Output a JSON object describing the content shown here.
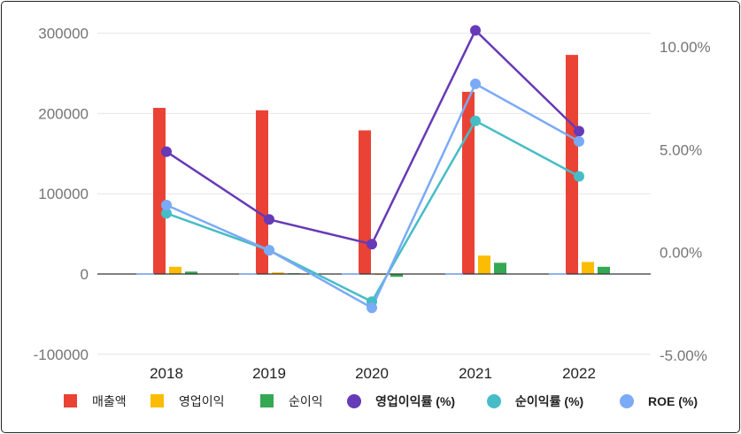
{
  "chart_data": {
    "type": "bar",
    "categories": [
      "2018",
      "2019",
      "2020",
      "2021",
      "2022"
    ],
    "series": [
      {
        "name": "매출액",
        "kind": "bar",
        "axis": "left",
        "color": "#EA4335",
        "values": [
          207000,
          204000,
          179000,
          227000,
          273000
        ]
      },
      {
        "name": "영업이익",
        "kind": "bar",
        "axis": "left",
        "color": "#FBBC04",
        "values": [
          9000,
          2000,
          -1000,
          23000,
          15000
        ]
      },
      {
        "name": "순이익",
        "kind": "bar",
        "axis": "left",
        "color": "#34A853",
        "values": [
          3000,
          1000,
          -3500,
          14000,
          9000
        ]
      },
      {
        "name": "영업이익률 (%)",
        "kind": "line",
        "axis": "right",
        "color": "#673AB7",
        "values": [
          4.9,
          1.6,
          0.4,
          10.8,
          5.9
        ]
      },
      {
        "name": "순이익률 (%)",
        "kind": "line",
        "axis": "right",
        "color": "#46BDC6",
        "values": [
          1.9,
          0.1,
          -2.4,
          6.4,
          3.7
        ]
      },
      {
        "name": "ROE (%)",
        "kind": "line",
        "axis": "right",
        "color": "#7BAAF7",
        "values": [
          2.3,
          0.1,
          -2.7,
          8.2,
          5.4
        ]
      }
    ],
    "left_axis": {
      "ylim": [
        -100000,
        300000
      ],
      "ticks": [
        "300000",
        "200000",
        "100000",
        "0",
        "-100000"
      ]
    },
    "right_axis": {
      "ylim": [
        -5,
        10
      ],
      "ticks": [
        "10.00%",
        "5.00%",
        "0.00%",
        "-5.00%"
      ]
    },
    "legend_position": "bottom",
    "grid": true
  }
}
